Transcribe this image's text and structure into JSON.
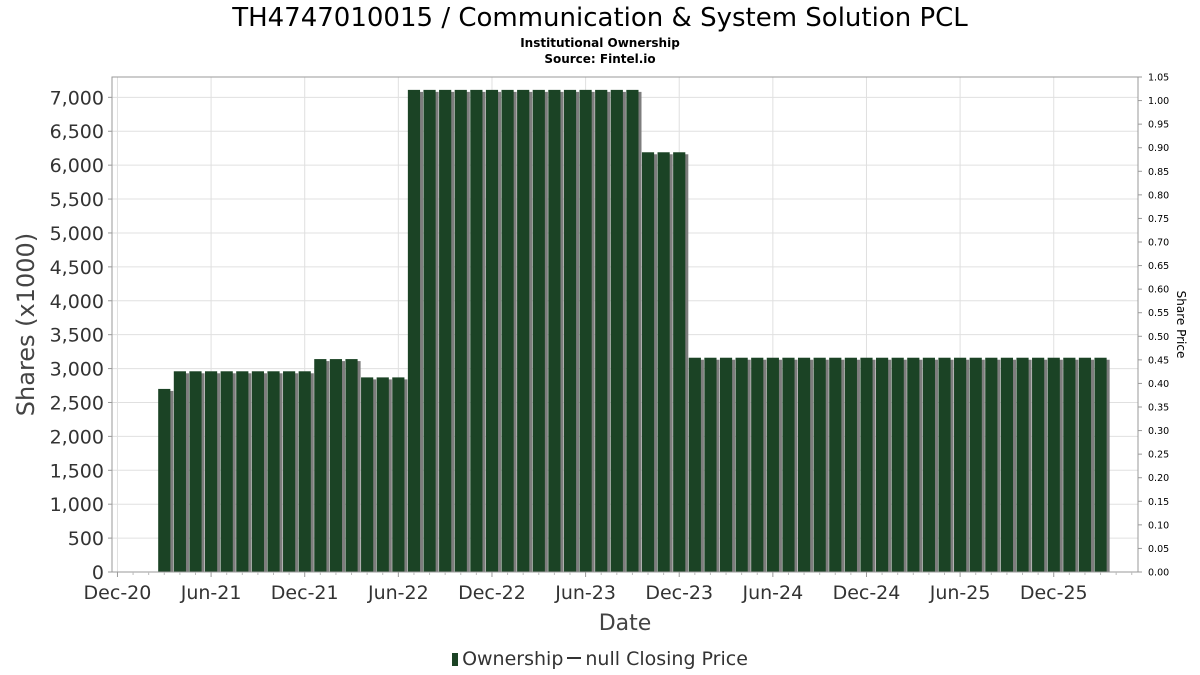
{
  "chart_data": {
    "type": "bar",
    "title": "TH4747010015 / Communication & System Solution PCL",
    "subtitle": "Institutional Ownership",
    "source": "Source: Fintel.io",
    "xlabel": "Date",
    "ylabel": "Shares (x1000)",
    "y2label": "Share Price",
    "ylim": [
      0,
      7300
    ],
    "y2lim": [
      0,
      1.05
    ],
    "yticks": [
      "0",
      "500",
      "1,000",
      "1,500",
      "2,000",
      "2,500",
      "3,000",
      "3,500",
      "4,000",
      "4,500",
      "5,000",
      "5,500",
      "6,000",
      "6,500",
      "7,000"
    ],
    "y2ticks": [
      "0.00",
      "0.05",
      "0.10",
      "0.15",
      "0.20",
      "0.25",
      "0.30",
      "0.35",
      "0.40",
      "0.45",
      "0.50",
      "0.55",
      "0.60",
      "0.65",
      "0.70",
      "0.75",
      "0.80",
      "0.85",
      "0.90",
      "0.95",
      "1.00",
      "1.05"
    ],
    "xticks": [
      "Dec-20",
      "Jun-21",
      "Dec-21",
      "Jun-22",
      "Dec-22",
      "Jun-23",
      "Dec-23",
      "Jun-24",
      "Dec-24",
      "Jun-25",
      "Dec-25"
    ],
    "grid": true,
    "legend_position": "bottom-center",
    "colors": {
      "bar": "#1b4325",
      "shadow": "#7d7d7d",
      "grid": "#e0e0e0"
    },
    "series": [
      {
        "name": "Ownership",
        "x": [
          "2021-03",
          "2021-04",
          "2021-05",
          "2021-06",
          "2021-07",
          "2021-08",
          "2021-09",
          "2021-10",
          "2021-11",
          "2021-12",
          "2022-01",
          "2022-02",
          "2022-03",
          "2022-04",
          "2022-05",
          "2022-06",
          "2022-07",
          "2022-08",
          "2022-09",
          "2022-10",
          "2022-11",
          "2022-12",
          "2023-01",
          "2023-02",
          "2023-03",
          "2023-04",
          "2023-05",
          "2023-06",
          "2023-07",
          "2023-08",
          "2023-09",
          "2023-10",
          "2023-11",
          "2023-12",
          "2024-01",
          "2024-02",
          "2024-03",
          "2024-04",
          "2024-05",
          "2024-06",
          "2024-07",
          "2024-08",
          "2024-09",
          "2024-10",
          "2024-11",
          "2024-12",
          "2025-01",
          "2025-02",
          "2025-03",
          "2025-04",
          "2025-05",
          "2025-06",
          "2025-07",
          "2025-08",
          "2025-09",
          "2025-10",
          "2025-11",
          "2025-12",
          "2026-01",
          "2026-02",
          "2026-03"
        ],
        "values": [
          2700,
          2960,
          2960,
          2960,
          2960,
          2960,
          2960,
          2960,
          2960,
          2960,
          3140,
          3140,
          3140,
          2870,
          2870,
          2870,
          7110,
          7110,
          7110,
          7110,
          7110,
          7110,
          7110,
          7110,
          7110,
          7110,
          7110,
          7110,
          7110,
          7110,
          7110,
          6190,
          6190,
          6190,
          3160,
          3160,
          3160,
          3160,
          3160,
          3160,
          3160,
          3160,
          3160,
          3160,
          3160,
          3160,
          3160,
          3160,
          3160,
          3160,
          3160,
          3160,
          3160,
          3160,
          3160,
          3160,
          3160,
          3160,
          3160,
          3160,
          3160
        ]
      }
    ]
  },
  "legend": {
    "bar_label": "Ownership",
    "line_label": "null Closing Price"
  }
}
